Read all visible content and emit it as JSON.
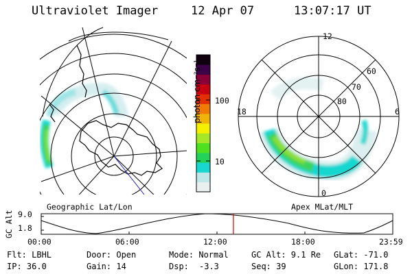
{
  "header": {
    "instrument": "Ultraviolet Imager",
    "date": "12 Apr 07",
    "time": "13:07:17 UT"
  },
  "geo_panel": {
    "label": "Geographic Lat/Lon"
  },
  "polar_panel": {
    "label": "Apex MLat/MLT",
    "mlt_labels": [
      "12",
      "18",
      "6",
      "0"
    ],
    "lat_labels": [
      "60",
      "70",
      "80"
    ]
  },
  "colorbar": {
    "unit": "photon cm⁻²s⁻¹",
    "ticks": [
      "100",
      "10"
    ],
    "colors": [
      "#e8f0f0",
      "#bfe6e8",
      "#19d7d0",
      "#22d25a",
      "#4fe020",
      "#a6e828",
      "#f4f000",
      "#f0b300",
      "#f07a00",
      "#e43000",
      "#c80010",
      "#8a0038",
      "#3c0048",
      "#10000f"
    ]
  },
  "timeline": {
    "ylabel": "GC Alt",
    "y_ticks": [
      "9.0",
      "1.8"
    ],
    "x_ticks": [
      "00:00",
      "06:00",
      "12:00",
      "18:00",
      "23:59"
    ],
    "marker_time_hours": 13.12
  },
  "status": {
    "filter": "Flt: LBHL",
    "ip": "IP: 36.0",
    "door": "Door: Open",
    "gain": "Gain: 14",
    "mode": "Mode: Normal",
    "dsp_label": "Dsp:",
    "dsp_value": "-3.3",
    "gc_alt": "GC Alt: 9.1 Re",
    "seq": "Seq: 39",
    "glat": "GLat: -71.0",
    "glon": "GLon: 171.8"
  }
}
